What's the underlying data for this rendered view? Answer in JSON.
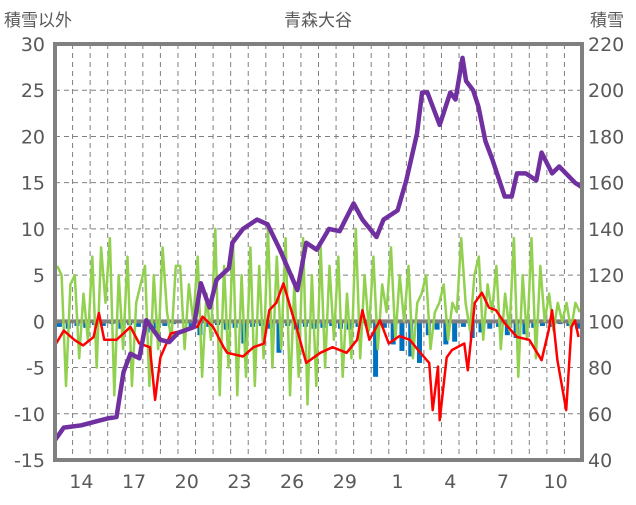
{
  "chart_data": {
    "type": "line",
    "title": "青森大谷",
    "ylabel_left": "積雪以外",
    "ylabel_right": "積雪",
    "ylim_left": [
      -15,
      30
    ],
    "ylim_right": [
      40,
      220
    ],
    "yticks_left": [
      30,
      25,
      20,
      15,
      10,
      5,
      0,
      -5,
      -10,
      -15
    ],
    "yticks_right": [
      220,
      200,
      180,
      160,
      140,
      120,
      100,
      80,
      60,
      40
    ],
    "xlim_days": [
      0,
      30
    ],
    "x_unit": "days since start of 13th (first day shown)",
    "xticks": [
      {
        "day": 1,
        "label": "14"
      },
      {
        "day": 4,
        "label": "17"
      },
      {
        "day": 7,
        "label": "20"
      },
      {
        "day": 10,
        "label": "23"
      },
      {
        "day": 13,
        "label": "26"
      },
      {
        "day": 16,
        "label": "29"
      },
      {
        "day": 19,
        "label": "1"
      },
      {
        "day": 22,
        "label": "4"
      },
      {
        "day": 25,
        "label": "7"
      },
      {
        "day": 28,
        "label": "10"
      }
    ],
    "grid": true,
    "colors": {
      "snow_depth": "#7030A0",
      "green": "#92D050",
      "red": "#FF0000",
      "blue": "#0070C0",
      "frame": "#808080"
    },
    "series": [
      {
        "name": "snow_depth",
        "axis": "right",
        "kind": "line",
        "points": [
          [
            0,
            48.6
          ],
          [
            0.5,
            54
          ],
          [
            1.5,
            55
          ],
          [
            2.5,
            57
          ],
          [
            3,
            58
          ],
          [
            3.5,
            58.6
          ],
          [
            3.9,
            78
          ],
          [
            4.3,
            86
          ],
          [
            4.8,
            84
          ],
          [
            5.2,
            100.5
          ],
          [
            6,
            92
          ],
          [
            6.5,
            91
          ],
          [
            7,
            95
          ],
          [
            7.9,
            97.5
          ],
          [
            8.3,
            116.5
          ],
          [
            8.8,
            106
          ],
          [
            9.2,
            118
          ],
          [
            9.9,
            123
          ],
          [
            10.1,
            134
          ],
          [
            10.7,
            140
          ],
          [
            11.5,
            144
          ],
          [
            12.1,
            142
          ],
          [
            12.8,
            131
          ],
          [
            13.8,
            113.5
          ],
          [
            14.3,
            134
          ],
          [
            14.9,
            131
          ],
          [
            15.6,
            140
          ],
          [
            16.2,
            139
          ],
          [
            17,
            151
          ],
          [
            17.5,
            144
          ],
          [
            18.3,
            136.5
          ],
          [
            18.7,
            144
          ],
          [
            19.5,
            148
          ],
          [
            20,
            161
          ],
          [
            20.6,
            181
          ],
          [
            20.9,
            199
          ],
          [
            21.2,
            199
          ],
          [
            21.9,
            185
          ],
          [
            22.5,
            199
          ],
          [
            22.8,
            196
          ],
          [
            23.2,
            214
          ],
          [
            23.4,
            204
          ],
          [
            23.8,
            200
          ],
          [
            24.1,
            193
          ],
          [
            24.5,
            178
          ],
          [
            24.9,
            170
          ],
          [
            25.6,
            154
          ],
          [
            26,
            154
          ],
          [
            26.3,
            164
          ],
          [
            26.8,
            164
          ],
          [
            27.4,
            161
          ],
          [
            27.7,
            173
          ],
          [
            28.3,
            164
          ],
          [
            28.7,
            167
          ],
          [
            29.6,
            160
          ],
          [
            30,
            158
          ]
        ]
      },
      {
        "name": "green",
        "axis": "left",
        "kind": "line",
        "step": 0.25,
        "values": [
          6,
          5,
          -7,
          4,
          5,
          -4,
          3,
          -2,
          7,
          -5,
          8,
          2,
          9,
          -8,
          5,
          -3,
          7,
          -7,
          2,
          4,
          6,
          -7,
          5,
          -3,
          8,
          1,
          -2,
          6,
          6,
          -3,
          4,
          0,
          7,
          -6,
          3,
          -2,
          10,
          -8,
          6,
          -5,
          9,
          -8,
          5,
          -6,
          8,
          -7,
          6,
          -4,
          10,
          -5,
          7,
          -3,
          9,
          -8,
          4,
          -6,
          9,
          -9,
          5,
          -7,
          8,
          -5,
          6,
          -2,
          7,
          -6,
          3,
          -4,
          10,
          -4,
          5,
          -1,
          7,
          -3,
          4,
          1,
          8,
          -2,
          5,
          0,
          6,
          -4,
          2,
          3,
          5,
          -3,
          1,
          2,
          4,
          -2,
          2,
          1,
          9,
          2,
          -1,
          5,
          7,
          -2,
          4,
          1,
          6,
          -3,
          3,
          -1,
          9,
          -6,
          5,
          -2,
          9,
          -4,
          6,
          0,
          3,
          -1,
          2,
          0,
          2,
          -1,
          2,
          1
        ]
      },
      {
        "name": "red",
        "axis": "left",
        "kind": "line",
        "points": [
          [
            0,
            -2.6
          ],
          [
            0.5,
            -1
          ],
          [
            1.1,
            -2
          ],
          [
            1.6,
            -2.6
          ],
          [
            2.2,
            -1.7
          ],
          [
            2.5,
            0.9
          ],
          [
            2.8,
            -2
          ],
          [
            3.5,
            -2
          ],
          [
            4.3,
            -0.6
          ],
          [
            4.8,
            -2.4
          ],
          [
            5.4,
            -2.8
          ],
          [
            5.7,
            -8.5
          ],
          [
            6,
            -3.9
          ],
          [
            6.6,
            -1.3
          ],
          [
            7.3,
            -1
          ],
          [
            8.1,
            -0.6
          ],
          [
            8.4,
            0.5
          ],
          [
            9,
            -0.6
          ],
          [
            9.6,
            -2.8
          ],
          [
            9.8,
            -3.4
          ],
          [
            10.7,
            -3.8
          ],
          [
            11.3,
            -2.8
          ],
          [
            11.9,
            -2.4
          ],
          [
            12.2,
            1.2
          ],
          [
            12.6,
            2
          ],
          [
            13,
            4.1
          ],
          [
            13.4,
            1.5
          ],
          [
            13.8,
            -1
          ],
          [
            14.3,
            -4.5
          ],
          [
            15.1,
            -3.4
          ],
          [
            15.8,
            -2.8
          ],
          [
            16.6,
            -3.4
          ],
          [
            17.2,
            -2
          ],
          [
            17.5,
            1.2
          ],
          [
            17.9,
            -2
          ],
          [
            18.5,
            0.1
          ],
          [
            19,
            -2.4
          ],
          [
            19.6,
            -1.6
          ],
          [
            20.2,
            -2
          ],
          [
            20.8,
            -3.4
          ],
          [
            21.3,
            -4.5
          ],
          [
            21.5,
            -9.6
          ],
          [
            21.8,
            -4.9
          ],
          [
            21.9,
            -10.7
          ],
          [
            22.3,
            -3.9
          ],
          [
            22.6,
            -3.1
          ],
          [
            23.3,
            -2.4
          ],
          [
            23.5,
            -5.3
          ],
          [
            23.9,
            2
          ],
          [
            24.3,
            3.1
          ],
          [
            24.7,
            1.5
          ],
          [
            25.1,
            1.2
          ],
          [
            25.6,
            -0.2
          ],
          [
            26.3,
            -1.7
          ],
          [
            27,
            -2
          ],
          [
            27.7,
            -4.2
          ],
          [
            28.1,
            -1
          ],
          [
            28.3,
            1.2
          ],
          [
            28.6,
            -4.2
          ],
          [
            29,
            -8.5
          ],
          [
            29.1,
            -9.6
          ],
          [
            29.4,
            -0.6
          ],
          [
            29.6,
            0.1
          ],
          [
            29.8,
            -1.7
          ]
        ]
      },
      {
        "name": "blue",
        "axis": "left",
        "kind": "bar",
        "step": 0.5,
        "start": 0.25,
        "values": [
          -0.6,
          -0.8,
          -0.5,
          -0.7,
          -0.4,
          -0.5,
          -0.3,
          -0.8,
          -0.4,
          -0.6,
          -1.2,
          -0.8,
          -0.5,
          -0.3,
          -0.2,
          -0.8,
          -1.5,
          -0.6,
          -0.4,
          -0.9,
          -0.7,
          -2.4,
          -0.6,
          -0.5,
          -0.8,
          -3.4,
          -0.5,
          -0.9,
          -0.6,
          -0.8,
          -0.7,
          -0.5,
          -0.8,
          -0.9,
          -0.6,
          -0.5,
          -6,
          -0.7,
          -2.5,
          -3.2,
          -3.8,
          -4.5,
          -1.5,
          -0.9,
          -2.5,
          -2.2,
          -0.6,
          -1.8,
          -1.2,
          -0.8,
          -0.6,
          -1.5,
          -1.8,
          -1.4,
          -0.7,
          -0.5,
          -0.6,
          -0.3,
          -0.5,
          -0.8
        ]
      }
    ]
  }
}
